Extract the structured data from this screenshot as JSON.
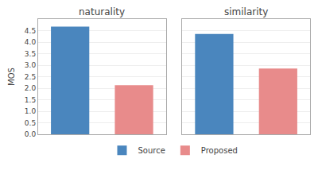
{
  "chart_data": [
    {
      "type": "bar",
      "title": "naturality",
      "ylabel": "MOS",
      "categories": [
        "Source",
        "Proposed"
      ],
      "values": [
        4.67,
        2.13
      ],
      "colors": [
        "#4a86be",
        "#e88b8b"
      ],
      "ylim": [
        0,
        5.0
      ],
      "yticks": [
        {
          "value": 0.0,
          "label": "0.0"
        },
        0.5,
        {
          "value": 1.0,
          "label": "1.0"
        },
        1.5,
        {
          "value": 2.0,
          "label": "2.0"
        },
        2.5,
        {
          "value": 3.0,
          "label": "3.0"
        },
        3.5,
        {
          "value": 4.0,
          "label": "4.0"
        },
        4.5
      ],
      "grid": true,
      "legend": "bottom",
      "tick_labels": "y"
    },
    {
      "type": "bar",
      "title": "similarity",
      "categories": [
        "Source",
        "Proposed"
      ],
      "values": [
        4.35,
        2.85
      ],
      "colors": [
        "#4a86be",
        "#e88b8b"
      ],
      "ylim": [
        0,
        5.0
      ],
      "yticks": [
        {
          "value": 0.0,
          "label": "0.0"
        },
        0.5,
        {
          "value": 1.0,
          "label": "1.0"
        },
        1.5,
        {
          "value": 2.0,
          "label": "2.0"
        },
        2.5,
        {
          "value": 3.0,
          "label": "3.0"
        },
        3.5,
        {
          "value": 4.0,
          "label": "4.0"
        },
        4.5
      ],
      "grid": true,
      "legend": "bottom",
      "tick_labels": false
    }
  ]
}
